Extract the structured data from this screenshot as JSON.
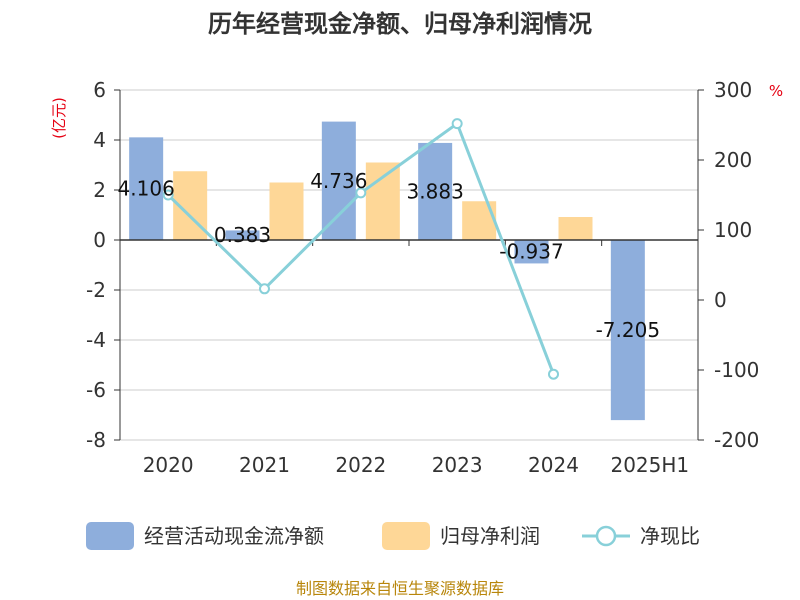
{
  "title": "历年经营现金净额、归母净利润情况",
  "units": {
    "left": "(亿元)",
    "right": "%"
  },
  "footer": "制图数据来自恒生聚源数据库",
  "colors": {
    "cashflow": "#8eaedc",
    "net_profit": "#fed797",
    "ratio": "#88d0d9",
    "axis": "#333333",
    "grid": "#cccccc"
  },
  "chart_data": {
    "type": "bar",
    "categories": [
      "2020",
      "2021",
      "2022",
      "2023",
      "2024",
      "2025H1"
    ],
    "series": [
      {
        "name": "经营活动现金流净额",
        "kind": "bar",
        "axis": "left",
        "values": [
          4.106,
          0.383,
          4.736,
          3.883,
          -0.937,
          -7.205
        ],
        "labels": [
          "4.106",
          "0.383",
          "4.736",
          "3.883",
          "-0.937",
          "-7.205"
        ]
      },
      {
        "name": "归母净利润",
        "kind": "bar",
        "axis": "left",
        "values": [
          2.75,
          2.3,
          3.1,
          1.55,
          0.92,
          null
        ]
      },
      {
        "name": "净现比",
        "kind": "line",
        "axis": "right",
        "values": [
          150,
          16,
          153,
          252,
          -106,
          null
        ]
      }
    ],
    "y_left": {
      "min": -8,
      "max": 6,
      "ticks": [
        6,
        4,
        2,
        0,
        -2,
        -4,
        -6,
        -8
      ]
    },
    "y_right": {
      "min": -200,
      "max": 300,
      "ticks": [
        300,
        200,
        100,
        0,
        -100,
        -200
      ]
    },
    "grid": true,
    "legend_position": "bottom"
  }
}
